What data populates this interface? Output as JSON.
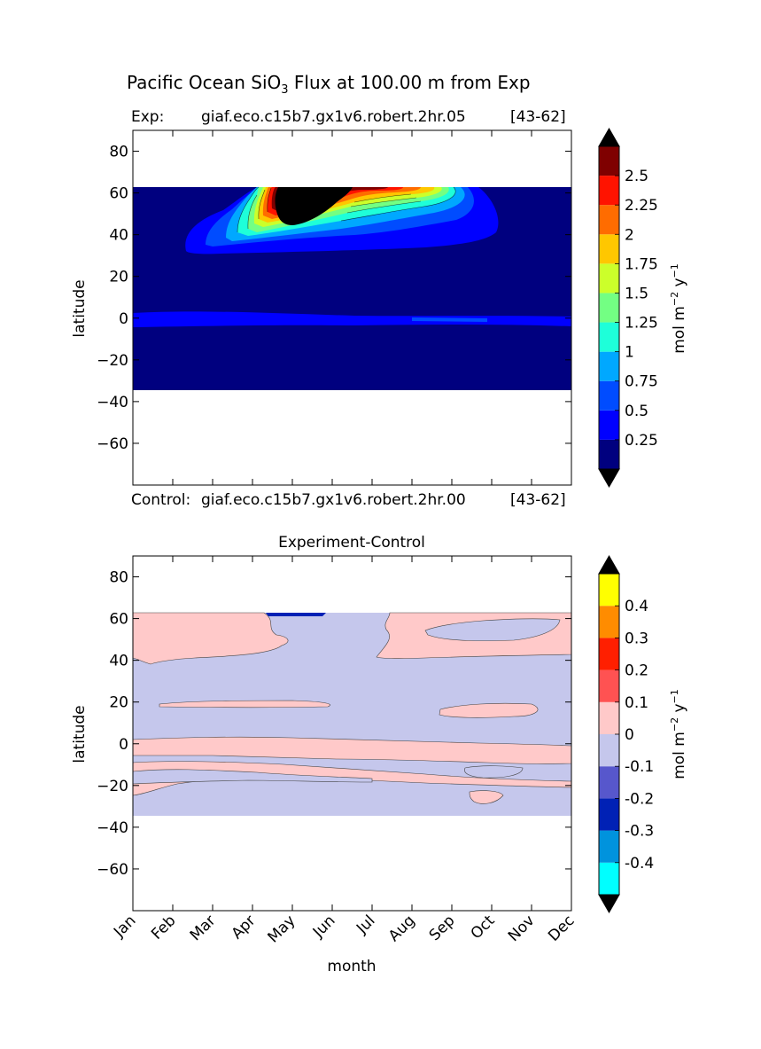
{
  "figure": {
    "title_main": "Pacific Ocean SiO",
    "title_sub": "3",
    "title_rest": " Flux at 100.00 m from Exp"
  },
  "top_panel": {
    "exp_label": "Exp:",
    "exp_run": "giaf.eco.c15b7.gx1v6.robert.2hr.05",
    "exp_years": "[43-62]",
    "control_label": "Control:",
    "control_run": "giaf.eco.c15b7.gx1v6.robert.2hr.00",
    "control_years": "[43-62]",
    "ylabel": "latitude",
    "colorbar_label": "mol m",
    "colorbar_exp1": "−2",
    "colorbar_mid": " y",
    "colorbar_exp2": "−1"
  },
  "bottom_panel": {
    "title": "Experiment-Control",
    "ylabel": "latitude",
    "xlabel": "month",
    "colorbar_label": "mol m",
    "colorbar_exp1": "−2",
    "colorbar_mid": " y",
    "colorbar_exp2": "−1"
  },
  "chart_data": [
    {
      "type": "heatmap",
      "subtype": "filled-contour",
      "title": "Exp: giaf.eco.c15b7.gx1v6.robert.2hr.05 [43-62]",
      "ylabel": "latitude",
      "ylim": [
        -80,
        90
      ],
      "yticks": [
        80,
        60,
        40,
        20,
        0,
        -20,
        -40,
        -60
      ],
      "ytick_labels": [
        "80",
        "60",
        "40",
        "20",
        "0",
        "−20",
        "−40",
        "−60"
      ],
      "data_extent": {
        "lat": [
          -34,
          63
        ],
        "month_index": [
          0,
          11
        ]
      },
      "colorbar": {
        "extend": "both",
        "tick_labels": [
          "0.25",
          "0.5",
          "0.75",
          "1",
          "1.25",
          "1.5",
          "1.75",
          "2",
          "2.25",
          "2.5"
        ],
        "levels": [
          0,
          0.25,
          0.5,
          0.75,
          1,
          1.25,
          1.5,
          1.75,
          2,
          2.25,
          2.5,
          2.75
        ],
        "colors": [
          "#00007f",
          "#0000ff",
          "#004cff",
          "#00a8ff",
          "#1effd9",
          "#73ff83",
          "#ccff2a",
          "#ffc700",
          "#ff6c00",
          "#ff1300",
          "#7f0000"
        ],
        "under_color": "#000000",
        "over_color": "#000000"
      },
      "features": [
        {
          "label": "high flux core",
          "month": "May",
          "lat_range": [
            45,
            63
          ],
          "value": "> 2.75"
        },
        {
          "label": "equatorial band",
          "lat_range": [
            -4,
            3
          ],
          "value_range": [
            0.25,
            0.5
          ]
        }
      ]
    },
    {
      "type": "heatmap",
      "subtype": "filled-contour",
      "title": "Experiment-Control",
      "xlabel": "month",
      "ylabel": "latitude",
      "ylim": [
        -80,
        90
      ],
      "yticks": [
        80,
        60,
        40,
        20,
        0,
        -20,
        -40,
        -60
      ],
      "ytick_labels": [
        "80",
        "60",
        "40",
        "20",
        "0",
        "−20",
        "−40",
        "−60"
      ],
      "categories": [
        "Jan",
        "Feb",
        "Mar",
        "Apr",
        "May",
        "Jun",
        "Jul",
        "Aug",
        "Sep",
        "Oct",
        "Nov",
        "Dec"
      ],
      "data_extent": {
        "lat": [
          -34,
          63
        ],
        "month_index": [
          0,
          11
        ]
      },
      "colorbar": {
        "extend": "both",
        "tick_labels": [
          "0.4",
          "0.3",
          "0.2",
          "0.1",
          "0",
          "-0.1",
          "-0.2",
          "-0.3",
          "-0.4"
        ],
        "levels": [
          -0.5,
          -0.4,
          -0.3,
          -0.2,
          -0.1,
          0,
          0.1,
          0.2,
          0.3,
          0.4,
          0.5
        ],
        "colors": [
          "#00ffff",
          "#0093dd",
          "#0021b5",
          "#5757cc",
          "#c5c7ec",
          "#ffc9c9",
          "#ff5252",
          "#ff1f00",
          "#ff8c00",
          "#ffff00"
        ],
        "under_color": "#000000",
        "over_color": "#000000"
      },
      "background_value_range": [
        -0.1,
        0
      ]
    }
  ]
}
